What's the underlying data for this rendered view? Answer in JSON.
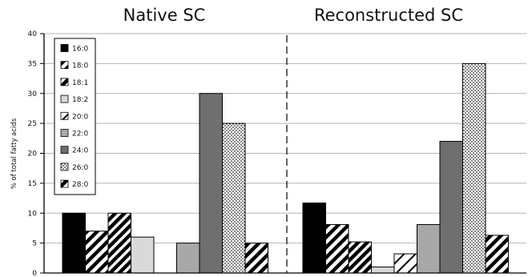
{
  "chart_data": {
    "type": "bar",
    "ylabel": "% of total fatty acids",
    "ylim": [
      0,
      40
    ],
    "yticks": [
      0,
      5,
      10,
      15,
      20,
      25,
      30,
      35,
      40
    ],
    "grid": true,
    "legend_position": "top-left",
    "groups": [
      {
        "title": "Native SC",
        "values": [
          10,
          7,
          10,
          6,
          null,
          5,
          30,
          25,
          5
        ]
      },
      {
        "title": "Reconstructed SC",
        "values": [
          11.7,
          8.1,
          5.2,
          1,
          3.2,
          8.1,
          22,
          35,
          6.3
        ]
      }
    ],
    "series": [
      {
        "name": "16:0",
        "pattern": "solid-black"
      },
      {
        "name": "18:0",
        "pattern": "diagonal-black"
      },
      {
        "name": "18:1",
        "pattern": "diagonal-black-dense"
      },
      {
        "name": "18:2",
        "pattern": "light-gray"
      },
      {
        "name": "20:0",
        "pattern": "diagonal-sparse"
      },
      {
        "name": "22:0",
        "pattern": "medium-gray"
      },
      {
        "name": "24:0",
        "pattern": "dark-gray"
      },
      {
        "name": "26:0",
        "pattern": "dotted"
      },
      {
        "name": "28:0",
        "pattern": "diagonal-black"
      }
    ]
  }
}
